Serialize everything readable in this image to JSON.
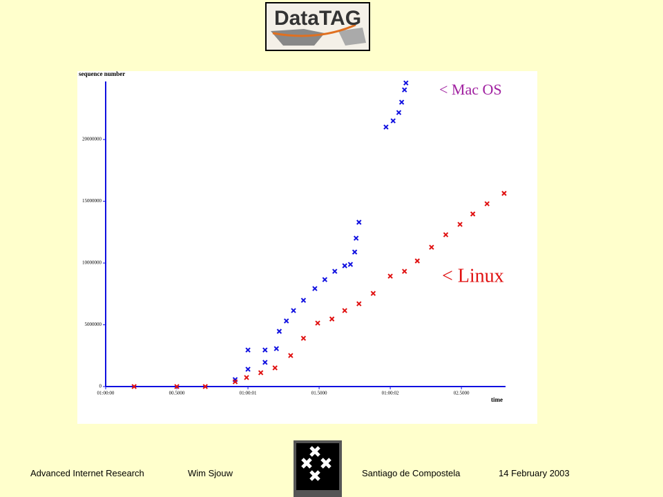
{
  "logo": {
    "text": "DataTAG"
  },
  "chart_data": {
    "type": "scatter",
    "y_label": "sequence number",
    "x_label": "time",
    "xlim": [
      0,
      2.81
    ],
    "ylim": [
      0,
      24700000
    ],
    "xticks": [
      {
        "value": 0,
        "label": "01:00:00"
      },
      {
        "value": 0.5,
        "label": "00.5000"
      },
      {
        "value": 1,
        "label": "01:00:01"
      },
      {
        "value": 1.5,
        "label": "01.5000"
      },
      {
        "value": 2,
        "label": "01:00:02"
      },
      {
        "value": 2.5,
        "label": "02.5000"
      }
    ],
    "yticks": [
      0,
      5000000,
      10000000,
      15000000,
      20000000
    ],
    "series": [
      {
        "name": "Mac OS",
        "color": "#1010e0",
        "x": [
          0.91,
          1.0,
          1.0,
          1.12,
          1.12,
          1.2,
          1.22,
          1.27,
          1.32,
          1.39,
          1.47,
          1.54,
          1.61,
          1.68,
          1.72,
          1.75,
          1.76,
          1.78,
          1.97,
          2.02,
          2.06,
          2.08,
          2.1,
          2.11
        ],
        "values": [
          560000,
          1400000,
          2960000,
          1960000,
          2960000,
          3070000,
          4470000,
          5310000,
          6150000,
          6980000,
          7930000,
          8660000,
          9330000,
          9780000,
          9890000,
          10890000,
          12010000,
          13300000,
          21010000,
          21510000,
          22180000,
          23020000,
          24020000,
          24580000
        ]
      },
      {
        "name": "Linux",
        "color": "#e01010",
        "x": [
          0.2,
          0.5,
          0.7,
          0.91,
          0.99,
          1.09,
          1.19,
          1.3,
          1.39,
          1.49,
          1.59,
          1.68,
          1.78,
          1.88,
          2.0,
          2.1,
          2.19,
          2.29,
          2.39,
          2.49,
          2.58,
          2.68,
          2.8
        ],
        "values": [
          0,
          0,
          0,
          390000,
          730000,
          1120000,
          1510000,
          2510000,
          3910000,
          5140000,
          5470000,
          6150000,
          6700000,
          7540000,
          8940000,
          9330000,
          10170000,
          11280000,
          12290000,
          13130000,
          13970000,
          14800000,
          15640000
        ]
      }
    ],
    "annotations": [
      {
        "text": "<  Mac OS",
        "color": "#a020a0"
      },
      {
        "text": "< Linux",
        "color": "#e01010"
      }
    ]
  },
  "footer": {
    "group": "Advanced Internet Research",
    "author": "Wim Sjouw",
    "place": "Santiago de Compostela",
    "date": "14 February 2003"
  }
}
